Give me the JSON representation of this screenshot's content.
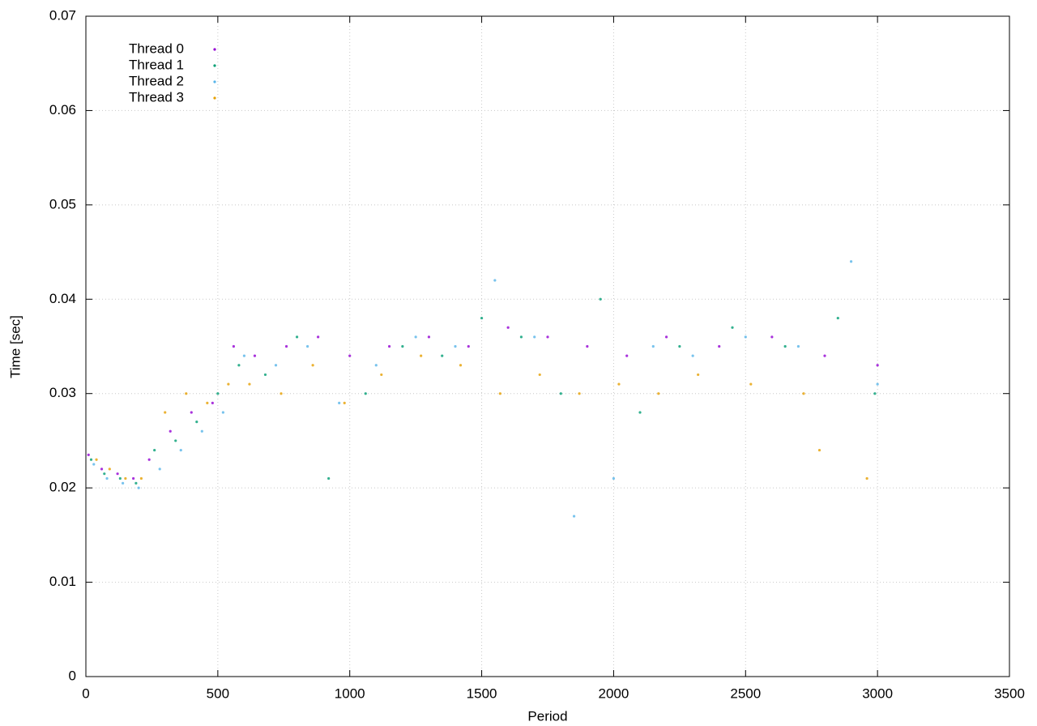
{
  "chart_data": {
    "type": "scatter",
    "xlabel": "Period",
    "ylabel": "Time [sec]",
    "xlim": [
      0,
      3500
    ],
    "ylim": [
      0,
      0.07
    ],
    "xticks": [
      0,
      500,
      1000,
      1500,
      2000,
      2500,
      3000,
      3500
    ],
    "yticks": [
      0,
      0.01,
      0.02,
      0.03,
      0.04,
      0.05,
      0.06,
      0.07
    ],
    "grid": true,
    "legend": "upper-left",
    "series": [
      {
        "name": "Thread 0",
        "color": "#9400d3",
        "x": [
          10,
          60,
          120,
          180,
          240,
          320,
          400,
          480,
          560,
          640,
          760,
          880,
          1000,
          1150,
          1300,
          1450,
          1600,
          1750,
          1900,
          2050,
          2200,
          2400,
          2600,
          2800,
          3000
        ],
        "values": [
          0.0235,
          0.022,
          0.0215,
          0.021,
          0.023,
          0.026,
          0.028,
          0.029,
          0.035,
          0.034,
          0.035,
          0.036,
          0.034,
          0.035,
          0.036,
          0.035,
          0.037,
          0.036,
          0.035,
          0.034,
          0.036,
          0.035,
          0.036,
          0.034,
          0.033
        ]
      },
      {
        "name": "Thread 1",
        "color": "#009e73",
        "x": [
          20,
          70,
          130,
          190,
          260,
          340,
          420,
          500,
          580,
          680,
          800,
          920,
          1060,
          1200,
          1350,
          1500,
          1650,
          1800,
          1950,
          2100,
          2250,
          2450,
          2650,
          2850,
          2990
        ],
        "values": [
          0.023,
          0.0215,
          0.021,
          0.0205,
          0.024,
          0.025,
          0.027,
          0.03,
          0.033,
          0.032,
          0.036,
          0.021,
          0.03,
          0.035,
          0.034,
          0.038,
          0.036,
          0.03,
          0.04,
          0.028,
          0.035,
          0.037,
          0.035,
          0.038,
          0.03
        ]
      },
      {
        "name": "Thread 2",
        "color": "#56b4e9",
        "x": [
          30,
          80,
          140,
          200,
          280,
          360,
          440,
          520,
          600,
          720,
          840,
          960,
          1100,
          1250,
          1400,
          1550,
          1700,
          1850,
          2000,
          2150,
          2300,
          2500,
          2700,
          2900,
          3000
        ],
        "values": [
          0.0225,
          0.021,
          0.0205,
          0.02,
          0.022,
          0.024,
          0.026,
          0.028,
          0.034,
          0.033,
          0.035,
          0.029,
          0.033,
          0.036,
          0.035,
          0.042,
          0.036,
          0.017,
          0.021,
          0.035,
          0.034,
          0.036,
          0.035,
          0.044,
          0.031
        ]
      },
      {
        "name": "Thread 3",
        "color": "#e69f00",
        "x": [
          40,
          90,
          150,
          210,
          300,
          380,
          460,
          540,
          620,
          740,
          860,
          980,
          1120,
          1270,
          1420,
          1570,
          1720,
          1870,
          2020,
          2170,
          2320,
          2520,
          2720,
          2780,
          2960
        ],
        "values": [
          0.023,
          0.022,
          0.021,
          0.021,
          0.028,
          0.03,
          0.029,
          0.031,
          0.031,
          0.03,
          0.033,
          0.029,
          0.032,
          0.034,
          0.033,
          0.03,
          0.032,
          0.03,
          0.031,
          0.03,
          0.032,
          0.031,
          0.03,
          0.024,
          0.021
        ]
      }
    ]
  }
}
